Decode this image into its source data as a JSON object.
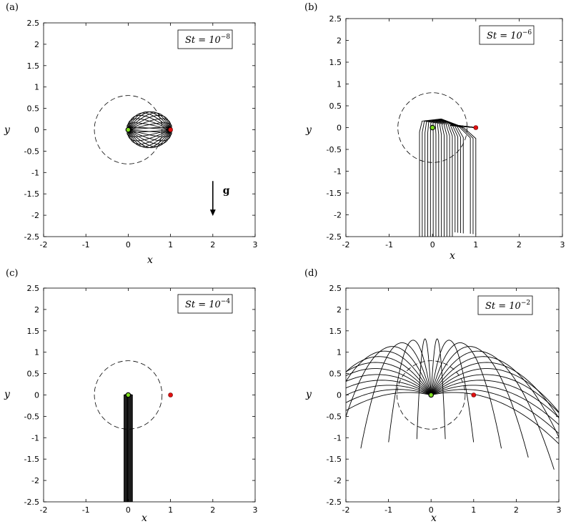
{
  "chart_data": [
    {
      "panel": "(a)",
      "type": "line",
      "xlabel": "x",
      "ylabel": "y",
      "xlim": [
        -2,
        3
      ],
      "ylim": [
        -2.5,
        2.5
      ],
      "xticks": [
        "-2",
        "-1",
        "0",
        "1",
        "2",
        "3"
      ],
      "yticks": [
        "2.5",
        "2",
        "1.5",
        "1",
        "0.5",
        "0",
        "-0.5",
        "-1",
        "-1.5",
        "-2",
        "-2.5"
      ],
      "annotation": {
        "base": "St = 10",
        "exp": "−8"
      },
      "gravity_label": "g",
      "circle": {
        "cx": 0,
        "cy": 0,
        "r": 0.8
      },
      "green_point": [
        0,
        0
      ],
      "red_point": [
        1,
        0
      ],
      "pattern": "converge"
    },
    {
      "panel": "(b)",
      "type": "line",
      "xlabel": "x",
      "ylabel": "y",
      "xlim": [
        -2,
        3
      ],
      "ylim": [
        -2.5,
        2.5
      ],
      "xticks": [
        "-2",
        "-1",
        "0",
        "1",
        "2",
        "3"
      ],
      "yticks": [
        "2.5",
        "2",
        "1.5",
        "1",
        "0.5",
        "0",
        "-0.5",
        "-1",
        "-1.5",
        "-2",
        "-2.5"
      ],
      "annotation": {
        "base": "St = 10",
        "exp": "−6"
      },
      "circle": {
        "cx": 0,
        "cy": 0,
        "r": 0.8
      },
      "green_point": [
        0,
        0
      ],
      "red_point": [
        1,
        0
      ],
      "pattern": "curtain"
    },
    {
      "panel": "(c)",
      "type": "line",
      "xlabel": "x",
      "ylabel": "y",
      "xlim": [
        -2,
        3
      ],
      "ylim": [
        -2.5,
        2.5
      ],
      "xticks": [
        "-2",
        "-1",
        "0",
        "1",
        "2",
        "3"
      ],
      "yticks": [
        "2.5",
        "2",
        "1.5",
        "1",
        "0.5",
        "0",
        "-0.5",
        "-1",
        "-1.5",
        "-2",
        "-2.5"
      ],
      "annotation": {
        "base": "St = 10",
        "exp": "−4"
      },
      "circle": {
        "cx": 0,
        "cy": 0,
        "r": 0.8
      },
      "green_point": [
        0,
        0
      ],
      "red_point": [
        1,
        0
      ],
      "pattern": "column"
    },
    {
      "panel": "(d)",
      "type": "line",
      "xlabel": "x",
      "ylabel": "y",
      "xlim": [
        -2,
        3
      ],
      "ylim": [
        -2.5,
        2.5
      ],
      "xticks": [
        "-2",
        "-1",
        "0",
        "1",
        "2",
        "3"
      ],
      "yticks": [
        "2.5",
        "2",
        "1.5",
        "1",
        "0.5",
        "0",
        "-0.5",
        "-1",
        "-1.5",
        "-2",
        "-2.5"
      ],
      "annotation": {
        "base": "St = 10",
        "exp": "−2"
      },
      "circle": {
        "cx": 0,
        "cy": 0,
        "r": 0.8
      },
      "green_point": [
        0,
        0
      ],
      "red_point": [
        1,
        0
      ],
      "pattern": "fountain"
    }
  ],
  "colors": {
    "green_point": "#7fe020",
    "red_point": "#e01010",
    "line": "#000000"
  }
}
